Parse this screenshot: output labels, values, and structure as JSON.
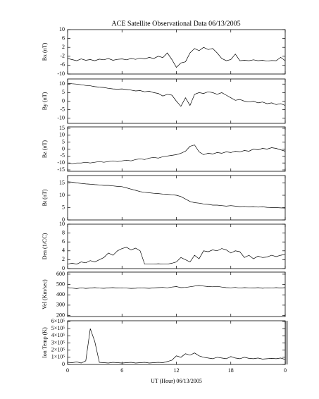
{
  "chart_data": [
    {
      "type": "line",
      "title": "ACE Satellite Observational Data  06/13/2005",
      "ylabel": "Bx (nT)",
      "x": [
        0,
        0.5,
        1,
        1.5,
        2,
        2.5,
        3,
        3.5,
        4,
        4.5,
        5,
        5.5,
        6,
        6.5,
        7,
        7.5,
        8,
        8.5,
        9,
        9.5,
        10,
        10.5,
        11,
        11.5,
        12,
        12.5,
        13,
        13.5,
        14,
        14.5,
        15,
        15.5,
        16,
        16.5,
        17,
        17.5,
        18,
        18.5,
        19,
        19.5,
        20,
        20.5,
        21,
        21.5,
        22,
        22.5,
        23,
        23.5,
        24
      ],
      "series": [
        {
          "name": "Bx",
          "color": "#000000",
          "values": [
            -3,
            -3.5,
            -4,
            -3.2,
            -3.8,
            -3.5,
            -4,
            -3.3,
            -3.6,
            -3,
            -3.8,
            -3.4,
            -3.2,
            -3.6,
            -3,
            -3.4,
            -2.8,
            -3.2,
            -2.5,
            -3,
            -2,
            -2.6,
            -0.5,
            -3.5,
            -7,
            -5,
            -4.5,
            -0.5,
            1.5,
            0.5,
            2,
            1,
            1.5,
            -0.5,
            -3,
            -4,
            -3.5,
            -1,
            -4,
            -3.8,
            -4,
            -3.6,
            -4,
            -3.8,
            -4.2,
            -3.9,
            -4,
            -2.5,
            -4
          ]
        }
      ],
      "xlim": [
        0,
        24
      ],
      "xticks": [
        0,
        6,
        12,
        18,
        {
          "value": 24,
          "label": "0"
        }
      ],
      "ylim": [
        -10,
        10
      ],
      "yticks": [
        10,
        6,
        2,
        -2,
        -6,
        -10
      ]
    },
    {
      "type": "line",
      "ylabel": "By (nT)",
      "x": [
        0,
        0.5,
        1,
        1.5,
        2,
        2.5,
        3,
        3.5,
        4,
        4.5,
        5,
        5.5,
        6,
        6.5,
        7,
        7.5,
        8,
        8.5,
        9,
        9.5,
        10,
        10.5,
        11,
        11.5,
        12,
        12.5,
        13,
        13.5,
        14,
        14.5,
        15,
        15.5,
        16,
        16.5,
        17,
        17.5,
        18,
        18.5,
        19,
        19.5,
        20,
        20.5,
        21,
        21.5,
        22,
        22.5,
        23,
        23.5,
        24
      ],
      "series": [
        {
          "name": "By",
          "color": "#000000",
          "values": [
            10.5,
            10.2,
            10,
            9.6,
            9.2,
            9,
            8.5,
            8.2,
            8,
            7.5,
            7.2,
            7,
            7.2,
            6.8,
            6.5,
            6,
            6.2,
            5.5,
            5.8,
            5,
            4.5,
            3,
            4,
            3.5,
            0,
            -3,
            2,
            -2.5,
            4,
            5,
            4.5,
            5.5,
            5,
            4,
            5,
            3.5,
            2,
            0.5,
            1,
            0,
            -0.5,
            0,
            -1,
            -0.5,
            -1.5,
            -1,
            -2,
            -1.5,
            -2.5
          ]
        }
      ],
      "xlim": [
        0,
        24
      ],
      "xticks": [
        0,
        6,
        12,
        18,
        {
          "value": 24,
          "label": "0"
        }
      ],
      "ylim": [
        -13,
        13
      ],
      "yticks": [
        10,
        5,
        0,
        -5,
        -10
      ]
    },
    {
      "type": "line",
      "ylabel": "Bz (nT)",
      "x": [
        0,
        0.5,
        1,
        1.5,
        2,
        2.5,
        3,
        3.5,
        4,
        4.5,
        5,
        5.5,
        6,
        6.5,
        7,
        7.5,
        8,
        8.5,
        9,
        9.5,
        10,
        10.5,
        11,
        11.5,
        12,
        12.5,
        13,
        13.5,
        14,
        14.5,
        15,
        15.5,
        16,
        16.5,
        17,
        17.5,
        18,
        18.5,
        19,
        19.5,
        20,
        20.5,
        21,
        21.5,
        22,
        22.5,
        23,
        23.5,
        24
      ],
      "series": [
        {
          "name": "Bz",
          "color": "#000000",
          "values": [
            -10,
            -10.5,
            -10,
            -10,
            -9.5,
            -10,
            -9.5,
            -9,
            -9.5,
            -9,
            -8.5,
            -9,
            -8.5,
            -8,
            -8.5,
            -7.5,
            -7,
            -7.5,
            -6.5,
            -6,
            -6.5,
            -5.5,
            -5,
            -4.5,
            -4,
            -3,
            -1.5,
            2,
            3,
            -2,
            -4,
            -3,
            -3.5,
            -2.5,
            -3,
            -2,
            -2.5,
            -1.5,
            -2,
            -1,
            -1.5,
            0,
            -0.5,
            0.5,
            0,
            1,
            0.5,
            -0.5,
            -1.5
          ]
        }
      ],
      "xlim": [
        0,
        24
      ],
      "xticks": [
        0,
        6,
        12,
        18,
        {
          "value": 24,
          "label": "0"
        }
      ],
      "ylim": [
        -16,
        16
      ],
      "yticks": [
        15,
        10,
        5,
        0,
        -5,
        -10,
        -15
      ]
    },
    {
      "type": "line",
      "ylabel": "Bt (nT)",
      "x": [
        0,
        0.5,
        1,
        1.5,
        2,
        2.5,
        3,
        3.5,
        4,
        4.5,
        5,
        5.5,
        6,
        6.5,
        7,
        7.5,
        8,
        8.5,
        9,
        9.5,
        10,
        10.5,
        11,
        11.5,
        12,
        12.5,
        13,
        13.5,
        14,
        14.5,
        15,
        15.5,
        16,
        16.5,
        17,
        17.5,
        18,
        18.5,
        19,
        19.5,
        20,
        20.5,
        21,
        21.5,
        22,
        22.5,
        23,
        23.5,
        24
      ],
      "series": [
        {
          "name": "Bt",
          "color": "#000000",
          "values": [
            15.5,
            15.3,
            15,
            14.8,
            14.6,
            14.5,
            14.3,
            14.2,
            14,
            14,
            13.8,
            13.6,
            13.5,
            13,
            12.5,
            12,
            11.5,
            11.2,
            11,
            10.8,
            10.7,
            10.5,
            10.4,
            10.2,
            10,
            9.5,
            8.5,
            7.5,
            7,
            6.8,
            6.5,
            6.3,
            6,
            6,
            5.8,
            5.6,
            5.8,
            5.6,
            5.4,
            5.5,
            5.3,
            5.4,
            5.2,
            5.3,
            5.1,
            5,
            5,
            4.9,
            4.8
          ]
        }
      ],
      "xlim": [
        0,
        24
      ],
      "xticks": [
        0,
        6,
        12,
        18,
        {
          "value": 24,
          "label": "0"
        }
      ],
      "ylim": [
        0,
        18
      ],
      "yticks": [
        15,
        10,
        5,
        0
      ]
    },
    {
      "type": "line",
      "ylabel": "Den (1/CC)",
      "x": [
        0,
        0.5,
        1,
        1.5,
        2,
        2.5,
        3,
        3.5,
        4,
        4.5,
        5,
        5.5,
        6,
        6.5,
        7,
        7.5,
        8,
        8.5,
        9,
        9.5,
        10,
        10.5,
        11,
        11.5,
        12,
        12.5,
        13,
        13.5,
        14,
        14.5,
        15,
        15.5,
        16,
        16.5,
        17,
        17.5,
        18,
        18.5,
        19,
        19.5,
        20,
        20.5,
        21,
        21.5,
        22,
        22.5,
        23,
        23.5,
        24
      ],
      "series": [
        {
          "name": "Den",
          "color": "#000000",
          "values": [
            1,
            1.2,
            1,
            1.5,
            1.3,
            1.8,
            1.5,
            2,
            2.5,
            3.5,
            3,
            4,
            4.5,
            4.8,
            4.2,
            4.6,
            4,
            1,
            1,
            1,
            1.1,
            1,
            1,
            1.2,
            1.5,
            2.5,
            2,
            1.5,
            3,
            2.2,
            4,
            3.8,
            4.2,
            4,
            4.5,
            4.2,
            3.5,
            4,
            3.8,
            2.5,
            3,
            2.2,
            2.8,
            2.5,
            2.6,
            3,
            2.7,
            3,
            3.2
          ]
        }
      ],
      "xlim": [
        0,
        24
      ],
      "xticks": [
        0,
        6,
        12,
        18,
        {
          "value": 24,
          "label": "0"
        }
      ],
      "ylim": [
        0,
        10
      ],
      "yticks": [
        10,
        8,
        6,
        4,
        2,
        0
      ]
    },
    {
      "type": "line",
      "ylabel": "Vel (Km/sec)",
      "x": [
        0,
        0.5,
        1,
        1.5,
        2,
        2.5,
        3,
        3.5,
        4,
        4.5,
        5,
        5.5,
        6,
        6.5,
        7,
        7.5,
        8,
        8.5,
        9,
        9.5,
        10,
        10.5,
        11,
        11.5,
        12,
        12.5,
        13,
        13.5,
        14,
        14.5,
        15,
        15.5,
        16,
        16.5,
        17,
        17.5,
        18,
        18.5,
        19,
        19.5,
        20,
        20.5,
        21,
        21.5,
        22,
        22.5,
        23,
        23.5,
        24
      ],
      "series": [
        {
          "name": "Vel",
          "color": "#000000",
          "values": [
            470,
            465,
            460,
            468,
            462,
            466,
            470,
            465,
            463,
            467,
            470,
            466,
            468,
            465,
            462,
            464,
            468,
            466,
            463,
            467,
            470,
            472,
            468,
            475,
            480,
            470,
            472,
            478,
            485,
            490,
            485,
            480,
            478,
            482,
            475,
            470,
            468,
            472,
            465,
            470,
            468,
            466,
            470,
            464,
            468,
            465,
            470,
            466,
            470
          ]
        }
      ],
      "xlim": [
        0,
        24
      ],
      "xticks": [
        0,
        6,
        12,
        18,
        {
          "value": 24,
          "label": "0"
        }
      ],
      "ylim": [
        190,
        620
      ],
      "yticks": [
        600,
        500,
        400,
        300,
        200
      ]
    },
    {
      "type": "line",
      "ylabel": "Ion Temp (K)",
      "xlabel": "UT (Hour)  06/13/2005",
      "x": [
        0,
        0.5,
        1,
        1.5,
        2,
        2.5,
        3,
        3.5,
        4,
        4.5,
        5,
        5.5,
        6,
        6.5,
        7,
        7.5,
        8,
        8.5,
        9,
        9.5,
        10,
        10.5,
        11,
        11.5,
        12,
        12.5,
        13,
        13.5,
        14,
        14.5,
        15,
        15.5,
        16,
        16.5,
        17,
        17.5,
        18,
        18.5,
        19,
        19.5,
        20,
        20.5,
        21,
        21.5,
        22,
        22.5,
        23,
        23.5,
        24
      ],
      "series": [
        {
          "name": "Ion Temp",
          "color": "#000000",
          "values": [
            30000,
            25000,
            35000,
            20000,
            50000,
            500000,
            320000,
            30000,
            25000,
            20000,
            30000,
            25000,
            20000,
            25000,
            30000,
            20000,
            25000,
            30000,
            20000,
            25000,
            30000,
            25000,
            40000,
            60000,
            120000,
            100000,
            150000,
            130000,
            160000,
            120000,
            100000,
            90000,
            80000,
            100000,
            90000,
            80000,
            110000,
            90000,
            80000,
            100000,
            85000,
            80000,
            90000,
            75000,
            80000,
            85000,
            80000,
            90000,
            70000
          ]
        }
      ],
      "xlim": [
        0,
        24
      ],
      "xticks": [
        0,
        6,
        12,
        18,
        {
          "value": 24,
          "label": "0"
        }
      ],
      "ylim": [
        0,
        610000
      ],
      "yticks": [
        0,
        {
          "value": 100000,
          "label": "1×10⁵"
        },
        {
          "value": 200000,
          "label": "2×10⁵"
        },
        {
          "value": 300000,
          "label": "3×10⁵"
        },
        {
          "value": 400000,
          "label": "4×10⁵"
        },
        {
          "value": 500000,
          "label": "5×10⁵"
        },
        {
          "value": 600000,
          "label": "6×10⁵"
        }
      ]
    }
  ]
}
